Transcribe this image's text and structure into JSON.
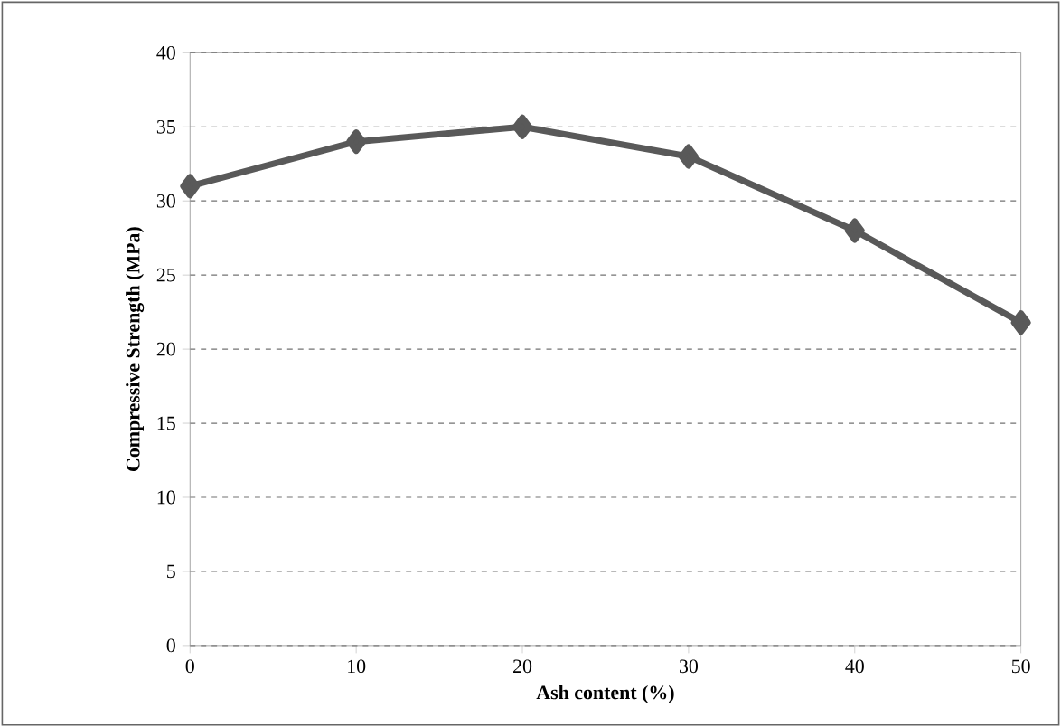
{
  "chart_data": {
    "type": "line",
    "xlabel": "Ash content (%)",
    "ylabel": "Compressive Strength (MPa)",
    "x": [
      0,
      10,
      20,
      30,
      40,
      50
    ],
    "series": [
      {
        "color": "#595959",
        "values": [
          31,
          34,
          35,
          33,
          28,
          21.8
        ]
      }
    ],
    "xlim": [
      0,
      50
    ],
    "xticks": [
      0,
      10,
      20,
      30,
      40,
      50
    ],
    "ylim": [
      0,
      40
    ],
    "yticks": [
      0,
      5,
      10,
      15,
      20,
      25,
      30,
      35,
      40
    ],
    "grid": "y",
    "marker": "diamond",
    "line_style": "solid"
  }
}
